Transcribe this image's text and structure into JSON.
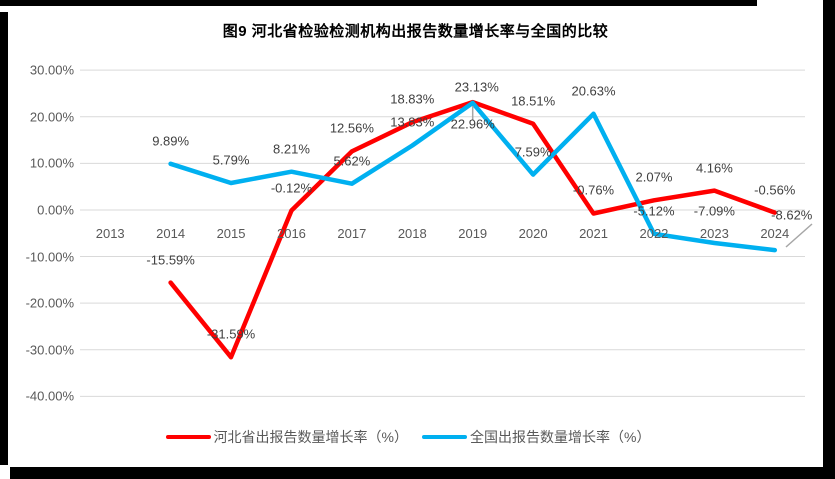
{
  "colors": {
    "border": "#000000",
    "chart_background": "#FFFFFF",
    "gridline": "#D9D9D9",
    "axis_text": "#595959",
    "data_label_text": "#404040",
    "leader_line": "#A6A6A6",
    "series_hebei": "#FF0000",
    "series_national": "#00B0F0"
  },
  "chart_data": {
    "type": "line",
    "title": "图9 河北省检验检测机构出报告数量增长率与全国的比较",
    "categories": [
      "2013",
      "2014",
      "2015",
      "2016",
      "2017",
      "2018",
      "2019",
      "2020",
      "2021",
      "2022",
      "2023",
      "2024"
    ],
    "y_axis": {
      "min": -40,
      "max": 30,
      "ticks": [
        {
          "label": "30.00%",
          "value": 30
        },
        {
          "label": "20.00%",
          "value": 20
        },
        {
          "label": "10.00%",
          "value": 10
        },
        {
          "label": "0.00%",
          "value": 0
        },
        {
          "label": "-10.00%",
          "value": -10
        },
        {
          "label": "-20.00%",
          "value": -20
        },
        {
          "label": "-30.00%",
          "value": -30
        },
        {
          "label": "-40.00%",
          "value": -40
        }
      ]
    },
    "grid": true,
    "legend_position": "bottom",
    "series": [
      {
        "name": "河北省出报告数量增长率（%）",
        "color": "#FF0000",
        "values": [
          null,
          -15.59,
          -31.59,
          -0.12,
          12.56,
          18.83,
          23.13,
          18.51,
          -0.76,
          2.07,
          4.16,
          -0.56
        ],
        "labels": [
          null,
          "-15.59%",
          "-31.59%",
          "-0.12%",
          "12.56%",
          "18.83%",
          "23.13%",
          "18.51%",
          "-0.76%",
          "2.07%",
          "4.16%",
          "-0.56%"
        ]
      },
      {
        "name": "全国出报告数量增长率（%）",
        "color": "#00B0F0",
        "values": [
          null,
          9.89,
          5.79,
          8.21,
          5.62,
          13.83,
          22.96,
          7.59,
          20.63,
          -5.12,
          -7.09,
          -8.62
        ],
        "labels": [
          null,
          "9.89%",
          "5.79%",
          "8.21%",
          "5.62%",
          "13.83%",
          "22.96%",
          "7.59%",
          "20.63%",
          "-5.12%",
          "-7.09%",
          "-8.62%"
        ]
      }
    ]
  }
}
